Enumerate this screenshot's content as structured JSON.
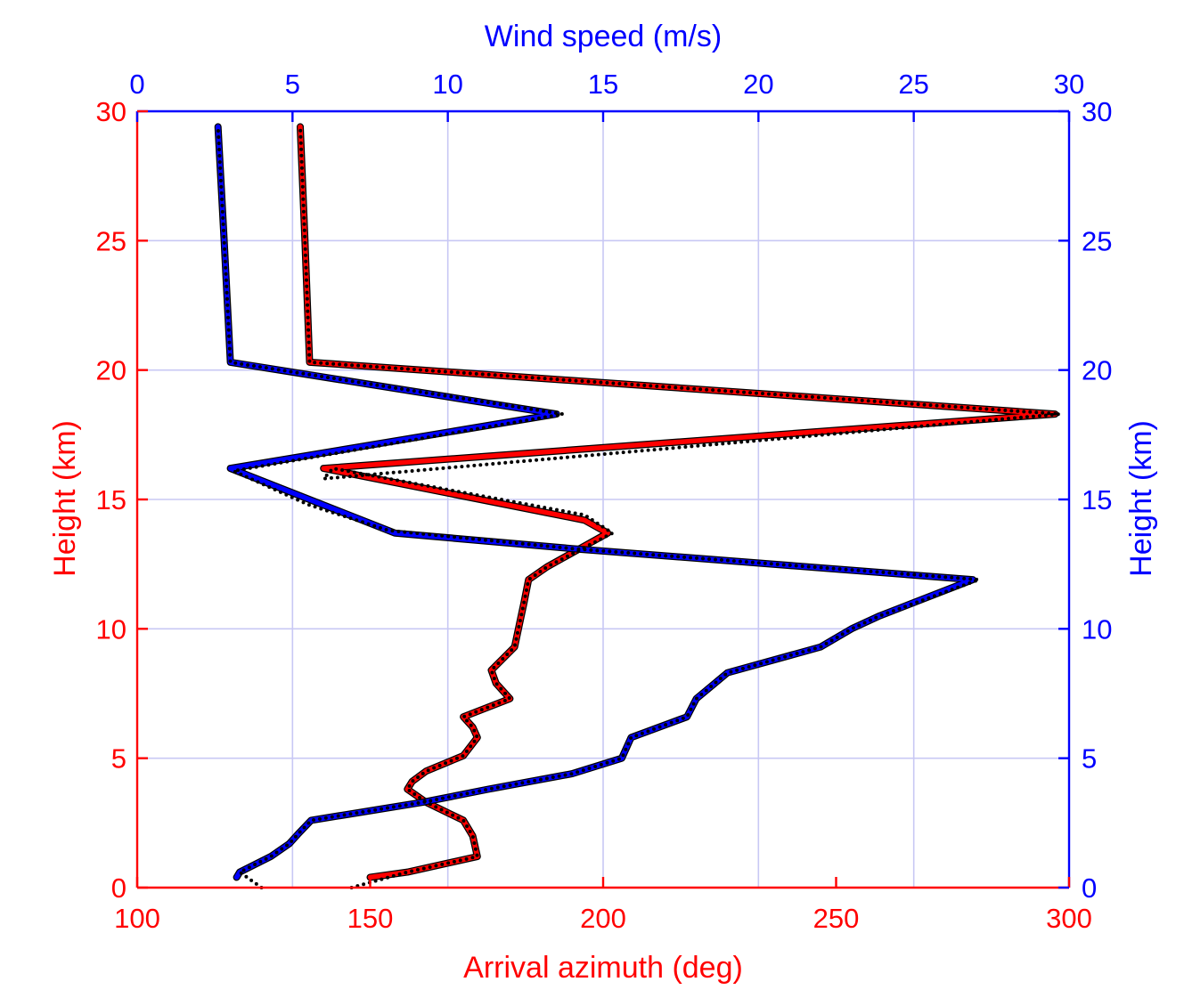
{
  "chart_data": {
    "type": "line",
    "x_bottom": {
      "label": "Arrival azimuth (deg)",
      "range": [
        100,
        300
      ],
      "ticks": [
        100,
        150,
        200,
        250,
        300
      ],
      "color": "#ff0000"
    },
    "x_top": {
      "label": "Wind speed (m/s)",
      "range": [
        0,
        30
      ],
      "ticks": [
        0,
        5,
        10,
        15,
        20,
        25,
        30
      ],
      "color": "#0000ff"
    },
    "y_left": {
      "label": "Height (km)",
      "range": [
        0,
        30
      ],
      "ticks": [
        0,
        5,
        10,
        15,
        20,
        25,
        30
      ],
      "color": "#ff0000"
    },
    "y_right": {
      "label": "Height (km)",
      "range": [
        0,
        30
      ],
      "ticks": [
        0,
        5,
        10,
        15,
        20,
        25,
        30
      ],
      "color": "#0000ff"
    },
    "grid": "wind-speed vertical lines and height horizontal lines",
    "series": [
      {
        "name": "Arrival azimuth",
        "axis": "bottom",
        "color": "#ff0000",
        "points": [
          [
            150,
            0.4
          ],
          [
            158,
            0.6
          ],
          [
            173,
            1.2
          ],
          [
            172,
            2.0
          ],
          [
            170,
            2.6
          ],
          [
            162,
            3.3
          ],
          [
            158,
            3.8
          ],
          [
            159,
            4.1
          ],
          [
            162,
            4.5
          ],
          [
            170,
            5.1
          ],
          [
            173,
            5.8
          ],
          [
            172,
            6.2
          ],
          [
            170,
            6.6
          ],
          [
            180,
            7.3
          ],
          [
            177,
            7.9
          ],
          [
            176,
            8.4
          ],
          [
            181,
            9.3
          ],
          [
            183,
            11.0
          ],
          [
            184,
            11.9
          ],
          [
            188,
            12.4
          ],
          [
            201,
            13.7
          ],
          [
            196,
            14.2
          ],
          [
            140,
            16.2
          ],
          [
            297,
            18.3
          ],
          [
            137,
            20.3
          ],
          [
            136,
            25
          ],
          [
            135,
            29.4
          ]
        ]
      },
      {
        "name": "Wind speed",
        "axis": "top",
        "color": "#0000ff",
        "points": [
          [
            3.2,
            0.4
          ],
          [
            3.3,
            0.6
          ],
          [
            4.3,
            1.2
          ],
          [
            4.9,
            1.7
          ],
          [
            5.2,
            2.1
          ],
          [
            5.6,
            2.6
          ],
          [
            9.2,
            3.3
          ],
          [
            11.3,
            3.8
          ],
          [
            14.0,
            4.4
          ],
          [
            15.6,
            5.0
          ],
          [
            15.9,
            5.8
          ],
          [
            17.7,
            6.6
          ],
          [
            18.0,
            7.3
          ],
          [
            18.5,
            7.8
          ],
          [
            19.0,
            8.3
          ],
          [
            22.0,
            9.3
          ],
          [
            23.0,
            10.0
          ],
          [
            23.9,
            10.5
          ],
          [
            26.9,
            11.9
          ],
          [
            14.0,
            13.1
          ],
          [
            8.3,
            13.7
          ],
          [
            3.0,
            16.2
          ],
          [
            13.5,
            18.3
          ],
          [
            3.0,
            20.3
          ],
          [
            2.8,
            25
          ],
          [
            2.6,
            29.4
          ]
        ]
      },
      {
        "name": "Arrival azimuth (reference)",
        "axis": "bottom",
        "color": "#000000",
        "style": "dotted",
        "points": [
          [
            146,
            0.0
          ],
          [
            158,
            0.6
          ],
          [
            173,
            1.2
          ],
          [
            172,
            2.0
          ],
          [
            170,
            2.6
          ],
          [
            162,
            3.3
          ],
          [
            158,
            3.8
          ],
          [
            159,
            4.1
          ],
          [
            162,
            4.5
          ],
          [
            170,
            5.1
          ],
          [
            173,
            5.8
          ],
          [
            172,
            6.2
          ],
          [
            170,
            6.6
          ],
          [
            180,
            7.3
          ],
          [
            177,
            7.9
          ],
          [
            176,
            8.4
          ],
          [
            181,
            9.3
          ],
          [
            183,
            11.0
          ],
          [
            184,
            11.9
          ],
          [
            188,
            12.4
          ],
          [
            202,
            13.7
          ],
          [
            196,
            14.4
          ],
          [
            142,
            16.2
          ],
          [
            140,
            15.8
          ],
          [
            298,
            18.3
          ],
          [
            137,
            20.3
          ],
          [
            136,
            25
          ],
          [
            135,
            29.4
          ]
        ]
      },
      {
        "name": "Wind speed (reference)",
        "axis": "top",
        "color": "#000000",
        "style": "dotted",
        "points": [
          [
            4.0,
            0.0
          ],
          [
            3.3,
            0.6
          ],
          [
            4.3,
            1.2
          ],
          [
            4.9,
            1.7
          ],
          [
            5.2,
            2.1
          ],
          [
            5.6,
            2.6
          ],
          [
            9.2,
            3.3
          ],
          [
            11.3,
            3.8
          ],
          [
            14.0,
            4.4
          ],
          [
            15.6,
            5.0
          ],
          [
            15.9,
            5.8
          ],
          [
            17.7,
            6.6
          ],
          [
            18.0,
            7.3
          ],
          [
            18.5,
            7.8
          ],
          [
            19.0,
            8.3
          ],
          [
            22.0,
            9.3
          ],
          [
            23.0,
            10.0
          ],
          [
            23.9,
            10.5
          ],
          [
            27.1,
            11.9
          ],
          [
            14.0,
            13.1
          ],
          [
            8.1,
            13.8
          ],
          [
            5.5,
            14.8
          ],
          [
            3.1,
            16.1
          ],
          [
            13.7,
            18.3
          ],
          [
            3.0,
            20.3
          ],
          [
            2.8,
            25
          ],
          [
            2.6,
            29.4
          ]
        ]
      }
    ]
  }
}
